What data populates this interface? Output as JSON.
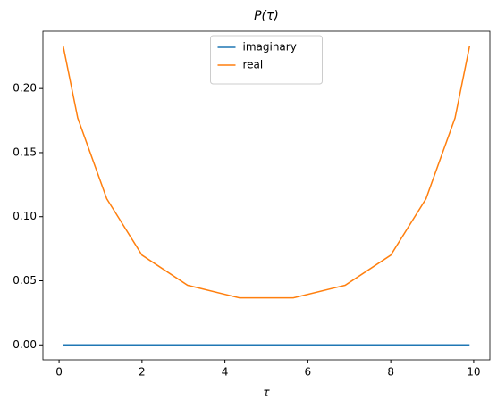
{
  "chart_data": {
    "type": "line",
    "title": "P(τ)",
    "x_label": "τ",
    "x": [
      0.1,
      0.45,
      1.15,
      2.0,
      3.1,
      4.35,
      5.65,
      6.9,
      8.0,
      8.85,
      9.55,
      9.9
    ],
    "series": [
      {
        "name": "imaginary",
        "color": "#1f77b4",
        "values": [
          0,
          0,
          0,
          0,
          0,
          0,
          0,
          0,
          0,
          0,
          0,
          0
        ]
      },
      {
        "name": "real",
        "color": "#ff7f0e",
        "values": [
          0.233,
          0.177,
          0.114,
          0.07,
          0.0465,
          0.0367,
          0.0367,
          0.0465,
          0.07,
          0.114,
          0.177,
          0.233
        ]
      }
    ],
    "xlim": [
      -0.39,
      10.39
    ],
    "xticks": [
      0,
      2,
      4,
      6,
      8,
      10
    ],
    "ylim": [
      -0.01165,
      0.2447
    ],
    "yticks": [
      {
        "value": 0,
        "label": "0.00"
      },
      {
        "value": 0.05,
        "label": "0.05"
      },
      {
        "value": 0.1,
        "label": "0.10"
      },
      {
        "value": 0.15,
        "label": "0.15"
      },
      {
        "value": 0.2,
        "label": "0.20"
      }
    ],
    "legend": "upper center",
    "grid": false
  }
}
